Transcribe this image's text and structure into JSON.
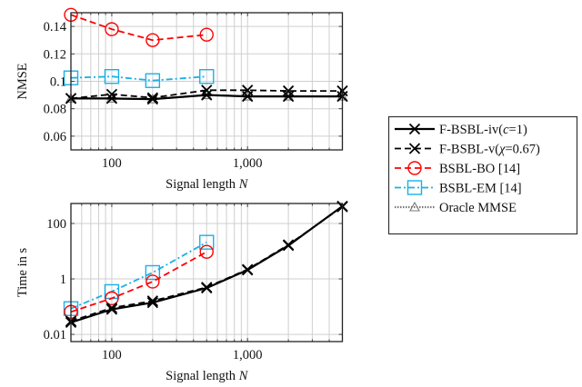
{
  "chart_data": [
    {
      "type": "line",
      "panel": "top",
      "title": "",
      "xlabel": "Signal length N",
      "xlabel_text": "Signal length ",
      "xlabel_var": "N",
      "ylabel": "NMSE",
      "xscale": "log",
      "yscale": "linear",
      "xlim": [
        50,
        5000
      ],
      "ylim": [
        0.05,
        0.15
      ],
      "grid": true,
      "x_ticks": [
        100,
        1000
      ],
      "x_tick_labels": [
        "100",
        "1,000"
      ],
      "y_ticks": [
        0.06,
        0.08,
        0.1,
        0.12,
        0.14
      ],
      "y_tick_labels": [
        "0.06",
        "0.08",
        "0.1",
        "0.12",
        "0.14"
      ],
      "x": [
        50,
        100,
        200,
        500,
        1000,
        2000,
        5000
      ],
      "series": [
        {
          "key": "fbsbl_iv",
          "name": "F-BSBL-iv(c=1)",
          "values": [
            0.0875,
            0.0875,
            0.087,
            0.09,
            0.089,
            0.089,
            0.089
          ]
        },
        {
          "key": "fbsbl_v",
          "name": "F-BSBL-v(χ=0.67)",
          "values": [
            0.0875,
            0.0905,
            0.088,
            0.0935,
            0.0935,
            0.093,
            0.093
          ]
        },
        {
          "key": "bsbl_bo",
          "name": "BSBL-BO [14]",
          "values": [
            0.1485,
            0.138,
            0.13,
            0.134,
            null,
            null,
            null
          ]
        },
        {
          "key": "bsbl_em",
          "name": "BSBL-EM [14]",
          "values": [
            0.1025,
            0.1035,
            0.1005,
            0.1035,
            null,
            null,
            null
          ]
        },
        {
          "key": "oracle",
          "name": "Oracle MMSE",
          "values": [
            0.0875,
            0.0875,
            0.087,
            0.09,
            0.089,
            0.089,
            0.089
          ]
        }
      ]
    },
    {
      "type": "line",
      "panel": "bottom",
      "title": "",
      "xlabel": "Signal length N",
      "xlabel_text": "Signal length ",
      "xlabel_var": "N",
      "ylabel": "Time in s",
      "xscale": "log",
      "yscale": "log",
      "xlim": [
        50,
        5000
      ],
      "ylim": [
        0.0055,
        525
      ],
      "grid": true,
      "x_ticks": [
        100,
        1000
      ],
      "x_tick_labels": [
        "100",
        "1,000"
      ],
      "y_ticks": [
        0.01,
        1,
        100
      ],
      "y_tick_labels": [
        "0.01",
        "1",
        "100"
      ],
      "x": [
        50,
        100,
        200,
        500,
        1000,
        2000,
        5000
      ],
      "series": [
        {
          "key": "fbsbl_iv",
          "name": "F-BSBL-iv(c=1)",
          "values": [
            0.027,
            0.08,
            0.14,
            0.47,
            2.1,
            16,
            420
          ]
        },
        {
          "key": "fbsbl_v",
          "name": "F-BSBL-v(χ=0.67)",
          "values": [
            0.03,
            0.09,
            0.16,
            0.5,
            2.2,
            17,
            400
          ]
        },
        {
          "key": "bsbl_bo",
          "name": "BSBL-BO [14]",
          "values": [
            0.065,
            0.2,
            0.8,
            9.5,
            null,
            null,
            null
          ]
        },
        {
          "key": "bsbl_em",
          "name": "BSBL-EM [14]",
          "values": [
            0.085,
            0.35,
            1.7,
            21,
            null,
            null,
            null
          ]
        },
        {
          "key": "oracle",
          "name": "Oracle MMSE",
          "values": [
            null,
            null,
            null,
            null,
            null,
            null,
            null
          ]
        }
      ]
    }
  ],
  "legend": {
    "placement": "right",
    "entries": [
      {
        "key": "fbsbl_iv",
        "label": "F-BSBL-iv(c=1)",
        "label_main": "F-BSBL-iv(",
        "label_var": "c",
        "label_rest": "=1)"
      },
      {
        "key": "fbsbl_v",
        "label": "F-BSBL-v(χ=0.67)",
        "label_main": "F-BSBL-v(",
        "label_var": "χ",
        "label_rest": "=0.67)"
      },
      {
        "key": "bsbl_bo",
        "label": "BSBL-BO [14]",
        "label_main": "BSBL-BO [14]",
        "label_var": "",
        "label_rest": ""
      },
      {
        "key": "bsbl_em",
        "label": "BSBL-EM [14]",
        "label_main": "BSBL-EM [14]",
        "label_var": "",
        "label_rest": ""
      },
      {
        "key": "oracle",
        "label": "Oracle MMSE",
        "label_main": "Oracle MMSE",
        "label_var": "",
        "label_rest": ""
      }
    ]
  },
  "styles": {
    "fbsbl_iv": {
      "color": "#000000",
      "dash": "",
      "marker": "x-icon",
      "width": 2.2
    },
    "fbsbl_v": {
      "color": "#000000",
      "dash": "7 4",
      "marker": "x-icon",
      "width": 1.8
    },
    "bsbl_bo": {
      "color": "#ff0000",
      "dash": "7 4",
      "marker": "circle-icon",
      "width": 1.8
    },
    "bsbl_em": {
      "color": "#1ab0e8",
      "dash": "7 3 2 3",
      "marker": "square-icon",
      "width": 1.8
    },
    "oracle": {
      "color": "#777777",
      "dash": "1.5 1.5",
      "marker": "triangle-icon",
      "width": 2.2
    },
    "grid_color": "#cfcfcf",
    "axis_color": "#222222"
  }
}
